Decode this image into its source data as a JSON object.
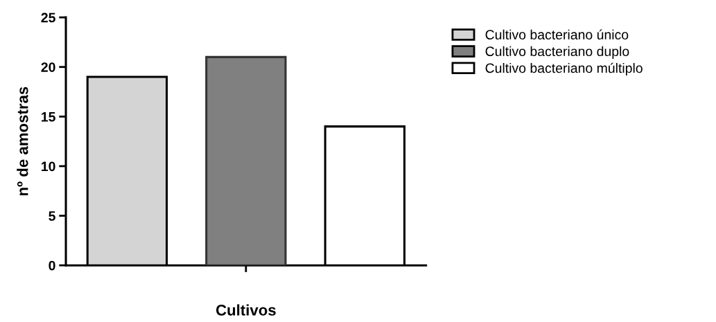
{
  "chart_data": {
    "type": "bar",
    "xlabel": "Cultivos",
    "ylabel": "nº de amostras",
    "categories": [
      null
    ],
    "series": [
      {
        "name": "Cultivo bacteriano único",
        "color": "#d4d4d4",
        "values": [
          19
        ]
      },
      {
        "name": "Cultivo bacteriano duplo",
        "color": "#808080",
        "values": [
          21
        ]
      },
      {
        "name": "Cultivo bacteriano múltiplo",
        "color": "#ffffff",
        "values": [
          14
        ]
      }
    ],
    "ylim": [
      0,
      25
    ],
    "yticks": [
      0,
      5,
      10,
      15,
      20,
      25
    ],
    "grid": false,
    "legend": "top right"
  }
}
